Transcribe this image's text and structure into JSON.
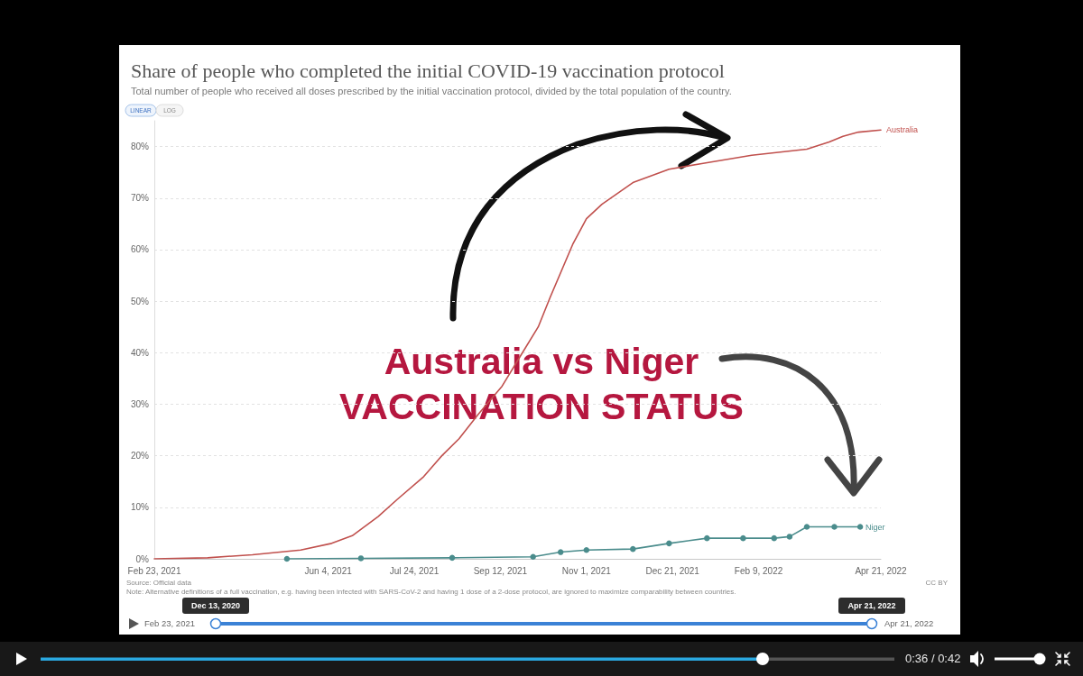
{
  "chart_data": {
    "type": "line",
    "title": "Share of people who completed the initial COVID-19 vaccination protocol",
    "subtitle": "Total number of people who received all doses prescribed by the initial vaccination protocol, divided by the total population of the country.",
    "annotations": [
      "LINEAR",
      "LOG",
      "Australia vs Niger",
      "VACCINATION STATUS",
      "Source: Official data",
      "Note: Alternative definitions of a full vaccination, e.g. having been infected with SARS-CoV-2 and having 1 dose of a 2-dose protocol, are ignored to maximize comparability between countries.",
      "CC BY",
      "Feb 23, 2021",
      "Dec 13, 2020",
      "Apr 21, 2022",
      "Apr 21, 2022",
      "0:36 / 0:42"
    ],
    "series": [
      {
        "name": "Australia",
        "color": "#c0504d",
        "x": [
          "2021-02-23",
          "2021-03-26",
          "2021-04-21",
          "2021-05-19",
          "2021-06-06",
          "2021-06-18",
          "2021-07-03",
          "2021-07-14",
          "2021-07-29",
          "2021-08-09",
          "2021-08-19",
          "2021-08-30",
          "2021-09-13",
          "2021-09-23",
          "2021-10-04",
          "2021-10-11",
          "2021-10-24",
          "2021-11-01",
          "2021-11-10",
          "2021-11-28",
          "2021-12-19",
          "2022-01-07",
          "2022-02-05",
          "2022-03-09",
          "2022-03-22",
          "2022-03-30",
          "2022-04-08",
          "2022-04-21"
        ],
        "values": [
          0,
          0.2,
          0.8,
          1.7,
          3.0,
          4.5,
          8.2,
          11.5,
          15.8,
          20,
          23.3,
          28,
          33.5,
          39,
          45,
          50.8,
          61,
          66,
          68.8,
          73,
          75.6,
          76.7,
          78.3,
          79.5,
          80.9,
          82,
          82.8,
          83.2
        ]
      },
      {
        "name": "Niger",
        "color": "#4a8c8c",
        "marker": "circle",
        "x": [
          "2021-05-11",
          "2021-06-23",
          "2021-08-15",
          "2021-10-01",
          "2021-10-17",
          "2021-11-01",
          "2021-11-28",
          "2021-12-19",
          "2022-01-10",
          "2022-01-31",
          "2022-02-18",
          "2022-02-27",
          "2022-03-09",
          "2022-03-25",
          "2022-04-09"
        ],
        "values": [
          0,
          0.1,
          0.2,
          0.4,
          1.3,
          1.7,
          1.9,
          3.0,
          4.0,
          4.0,
          4.0,
          4.3,
          6.2,
          6.2,
          6.2
        ]
      }
    ],
    "xlim": [
      "2021-02-23",
      "2022-04-21"
    ],
    "xticks": [
      {
        "value": "2021-02-23",
        "label": "Feb 23, 2021"
      },
      {
        "value": "2021-06-04",
        "label": "Jun 4, 2021"
      },
      {
        "value": "2021-07-24",
        "label": "Jul 24, 2021"
      },
      {
        "value": "2021-09-12",
        "label": "Sep 12, 2021"
      },
      {
        "value": "2021-11-01",
        "label": "Nov 1, 2021"
      },
      {
        "value": "2021-12-21",
        "label": "Dec 21, 2021"
      },
      {
        "value": "2022-02-09",
        "label": "Feb 9, 2022"
      },
      {
        "value": "2022-04-21",
        "label": "Apr 21, 2022"
      }
    ],
    "ylim": [
      0,
      85
    ],
    "yticks": [
      {
        "value": 0,
        "label": "0%"
      },
      {
        "value": 10,
        "label": "10%"
      },
      {
        "value": 20,
        "label": "20%"
      },
      {
        "value": 30,
        "label": "30%"
      },
      {
        "value": 40,
        "label": "40%"
      },
      {
        "value": 50,
        "label": "50%"
      },
      {
        "value": 60,
        "label": "60%"
      },
      {
        "value": 70,
        "label": "70%"
      },
      {
        "value": 80,
        "label": "80%"
      }
    ],
    "grid": "y"
  }
}
